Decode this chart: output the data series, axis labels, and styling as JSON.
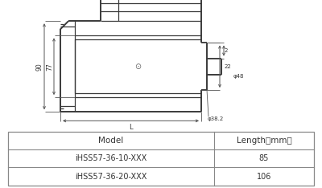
{
  "bg_color": "#ffffff",
  "table_header": [
    "Model",
    "Length（mm）"
  ],
  "table_rows": [
    [
      "iHSS57-36-10-XXX",
      "85"
    ],
    [
      "iHSS57-36-20-XXX",
      "106"
    ]
  ],
  "line_color": "#3a3a3a",
  "dim_color": "#555555",
  "table_line_color": "#888888",
  "text_color": "#333333",
  "dim_labels": {
    "L": "L",
    "d90": "90",
    "d77": "77",
    "d2": "2",
    "d22": "22",
    "d38": "φ38.2",
    "d48": "φ48"
  }
}
